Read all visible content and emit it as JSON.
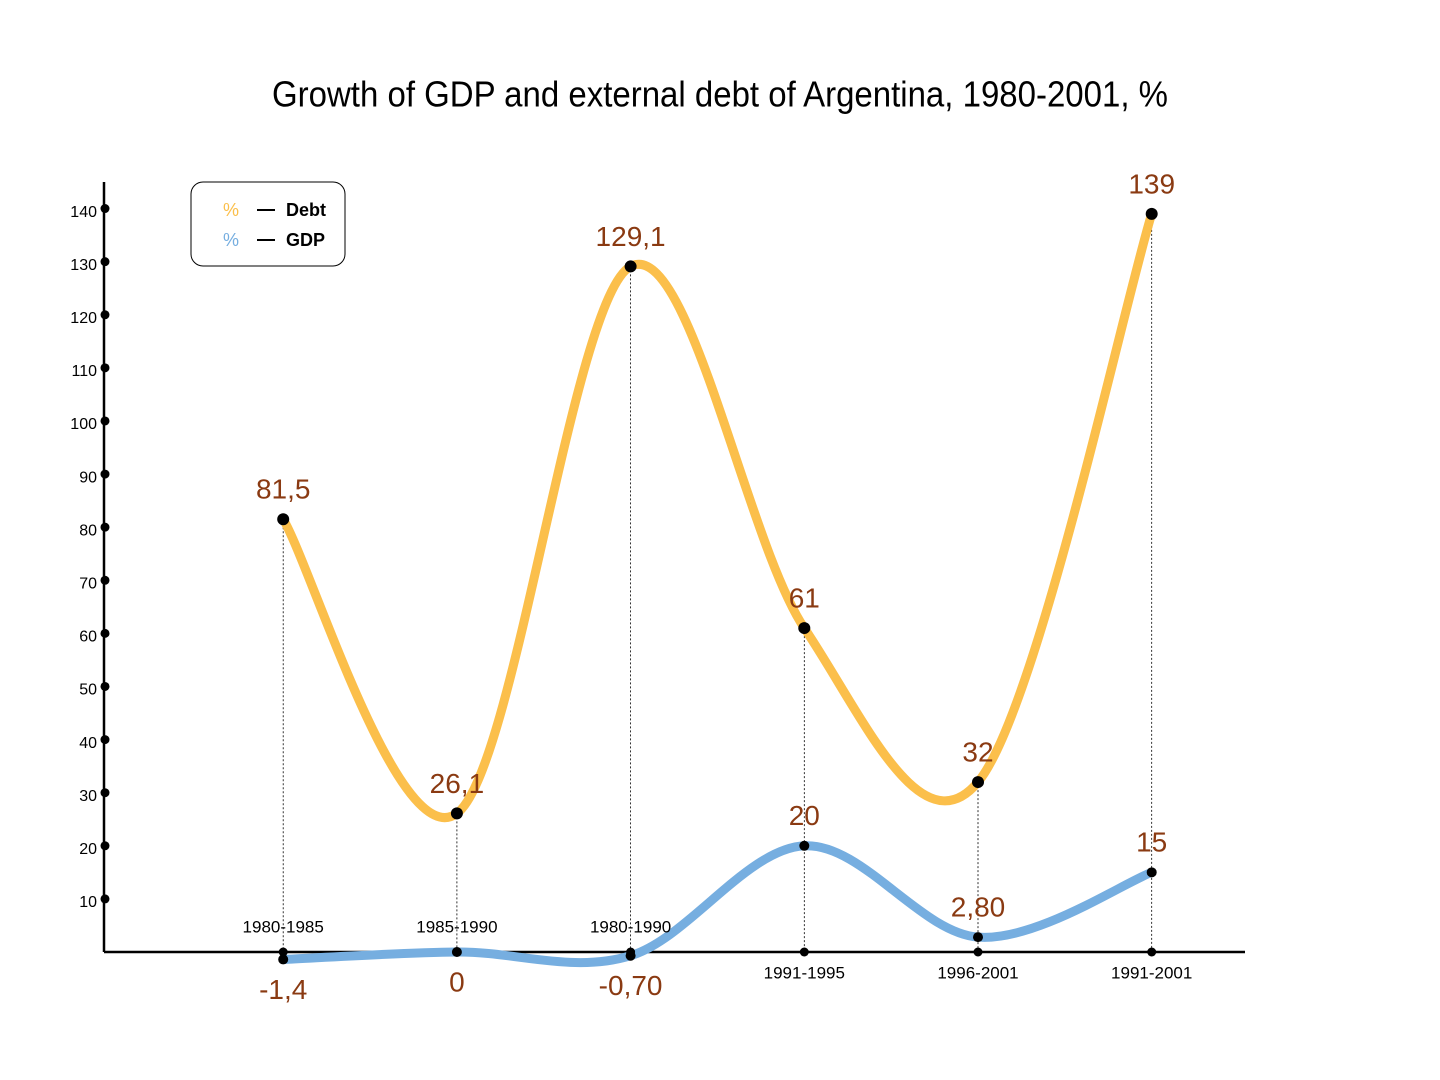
{
  "chart_data": {
    "type": "line",
    "title": "Growth of GDP and external debt of Argentina, 1980-2001, %",
    "categories": [
      "1980-1985",
      "1985-1990",
      "1980-1990",
      "1991-1995",
      "1996-2001",
      "1991-2001"
    ],
    "series": [
      {
        "name": "Debt",
        "color": "#fbbf4b",
        "values": [
          81.5,
          26.1,
          129.1,
          61,
          32,
          139
        ],
        "value_labels": [
          "81,5",
          "26,1",
          "129,1",
          "61",
          "32",
          "139"
        ]
      },
      {
        "name": "GDP",
        "color": "#76aee0",
        "values": [
          -1.4,
          0,
          -0.7,
          20,
          2.8,
          15
        ],
        "value_labels": [
          "-1,4",
          "0",
          "-0,70",
          "20",
          "2,80",
          "15"
        ]
      }
    ],
    "legend_marker": "%",
    "legend": "upper left",
    "ylim": [
      0,
      145
    ],
    "yticks": [
      10,
      20,
      30,
      40,
      50,
      60,
      70,
      80,
      90,
      100,
      110,
      120,
      130,
      140
    ]
  }
}
